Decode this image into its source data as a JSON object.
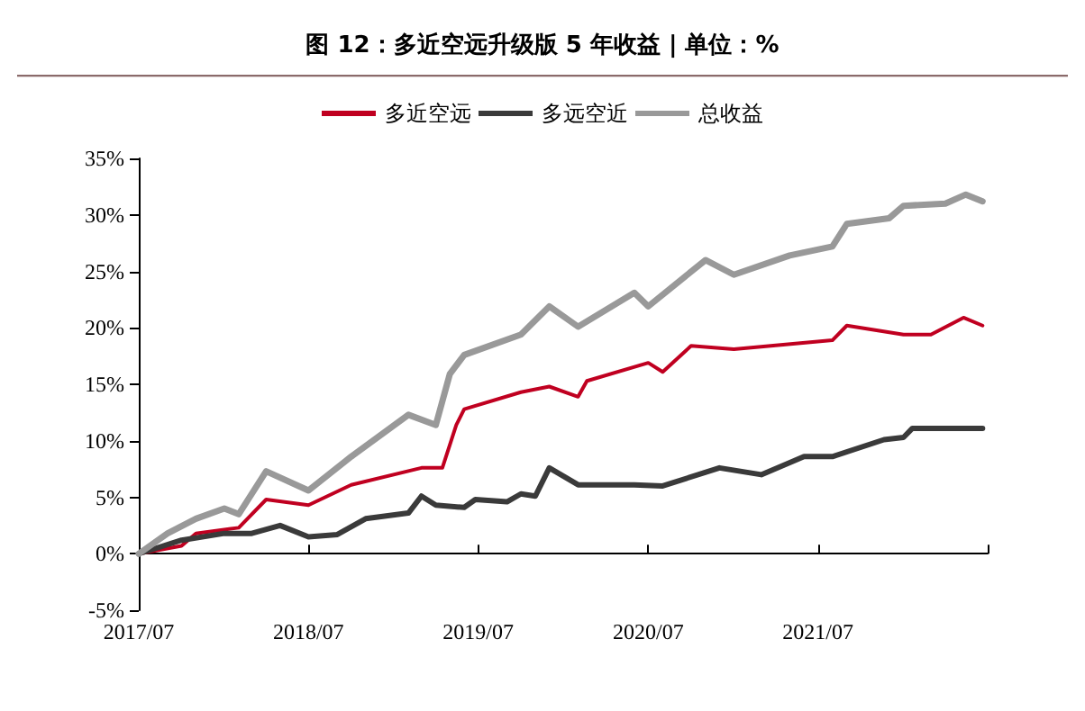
{
  "chart_data": {
    "type": "line",
    "title": "图 12：多近空远升级版 5 年收益 | 单位：%",
    "legend": "top",
    "xlim": [
      "2017-07",
      "2022-07"
    ],
    "xticks": [
      {
        "value": "2017-07",
        "label": "2017/07"
      },
      {
        "value": "2018-07",
        "label": "2018/07"
      },
      {
        "value": "2019-07",
        "label": "2019/07"
      },
      {
        "value": "2020-07",
        "label": "2020/07"
      },
      {
        "value": "2021-07",
        "label": "2021/07"
      },
      {
        "value": "2022-07",
        "label": null
      }
    ],
    "ylim": [
      -5,
      35
    ],
    "yticks": [
      {
        "value": -5,
        "label": "-5%"
      },
      {
        "value": 0,
        "label": "0%"
      },
      {
        "value": 5,
        "label": "5%"
      },
      {
        "value": 10,
        "label": "10%"
      },
      {
        "value": 15,
        "label": "15%"
      },
      {
        "value": 20,
        "label": "20%"
      },
      {
        "value": 25,
        "label": "25%"
      },
      {
        "value": 30,
        "label": "30%"
      },
      {
        "value": 35,
        "label": "35%"
      }
    ],
    "series": [
      {
        "name": "多近空远",
        "color": "#c00020",
        "x": [
          "2017-07",
          "2017-10",
          "2017-11",
          "2018-02",
          "2018-04",
          "2018-07",
          "2018-10",
          "2019-03",
          "2019-04-15",
          "2019-05-15",
          "2019-06",
          "2019-10",
          "2019-12",
          "2020-02",
          "2020-02-20",
          "2020-07",
          "2020-08",
          "2020-10",
          "2021-01",
          "2021-08",
          "2021-09",
          "2022-01",
          "2022-03",
          "2022-05-10",
          "2022-06-20"
        ],
        "values": [
          0,
          0.7,
          1.8,
          2.3,
          4.8,
          4.3,
          6.1,
          7.6,
          7.6,
          11.4,
          12.8,
          14.3,
          14.8,
          13.9,
          15.3,
          16.9,
          16.1,
          18.4,
          18.1,
          18.9,
          20.2,
          19.4,
          19.4,
          20.9,
          20.2
        ]
      },
      {
        "name": "多远空近",
        "color": "#3a3a3a",
        "x": [
          "2017-07",
          "2017-10",
          "2018-01",
          "2018-03",
          "2018-05",
          "2018-07",
          "2018-09",
          "2018-11",
          "2019-02",
          "2019-03",
          "2019-04",
          "2019-06",
          "2019-06-25",
          "2019-09",
          "2019-10",
          "2019-11",
          "2019-12",
          "2020-02",
          "2020-06",
          "2020-08",
          "2020-12",
          "2021-03",
          "2021-06",
          "2021-08",
          "2021-11-20",
          "2022-01-01",
          "2022-01-20",
          "2022-06-20"
        ],
        "values": [
          0,
          1.2,
          1.8,
          1.8,
          2.5,
          1.5,
          1.7,
          3.1,
          3.6,
          5.1,
          4.3,
          4.1,
          4.8,
          4.6,
          5.3,
          5.1,
          7.6,
          6.1,
          6.1,
          6.0,
          7.6,
          7.0,
          8.6,
          8.6,
          10.1,
          10.3,
          11.1,
          11.1
        ]
      },
      {
        "name": "总收益",
        "color": "#999999",
        "x": [
          "2017-07",
          "2017-09",
          "2017-11",
          "2018-01",
          "2018-02",
          "2018-04",
          "2018-07",
          "2018-10",
          "2019-02",
          "2019-04",
          "2019-05",
          "2019-06",
          "2019-10",
          "2019-12",
          "2020-02",
          "2020-06",
          "2020-07",
          "2020-11",
          "2021-01",
          "2021-05",
          "2021-08",
          "2021-09",
          "2021-12",
          "2022-01",
          "2022-04",
          "2022-05-15",
          "2022-06-20"
        ],
        "values": [
          0,
          1.8,
          3.1,
          4.0,
          3.5,
          7.3,
          5.6,
          8.6,
          12.3,
          11.4,
          15.9,
          17.6,
          19.4,
          21.9,
          20.1,
          23.1,
          21.9,
          26.0,
          24.7,
          26.4,
          27.2,
          29.2,
          29.7,
          30.8,
          31.0,
          31.8,
          31.2
        ]
      }
    ]
  }
}
